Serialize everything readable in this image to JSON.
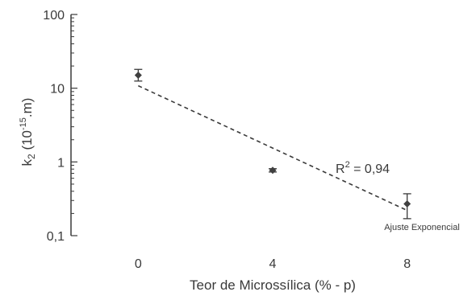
{
  "chart_data": {
    "type": "scatter",
    "title": "",
    "xlabel": "Teor de Microssílica (% - p)",
    "ylabel": {
      "main": "k",
      "sub": "2",
      "mid": " (10",
      "sup": "-15",
      "end": ".m)"
    },
    "x_ticks": [
      "0",
      "4",
      "8"
    ],
    "y_ticks": [
      "0,1",
      "1",
      "10",
      "100"
    ],
    "xlim": [
      -2,
      10
    ],
    "ylim": [
      0.1,
      100
    ],
    "y_scale": "log",
    "grid": false,
    "points": [
      {
        "x": 0,
        "y": 15,
        "err_low": 12.5,
        "err_high": 18
      },
      {
        "x": 4,
        "y": 0.77,
        "err_low": 0.73,
        "err_high": 0.81
      },
      {
        "x": 8,
        "y": 0.27,
        "err_low": 0.17,
        "err_high": 0.37
      }
    ],
    "fit": {
      "type": "exponential",
      "x": [
        0,
        8
      ],
      "y": [
        10.8,
        0.22
      ],
      "line_style": "dashed",
      "label": "Ajuste Exponencial"
    },
    "annotation": {
      "base": "R",
      "sup": "2",
      "rest": " = 0,94"
    },
    "colors": {
      "axis": "#3a3a3a",
      "marker": "#404040",
      "fit_line": "#3a3a3a"
    }
  }
}
